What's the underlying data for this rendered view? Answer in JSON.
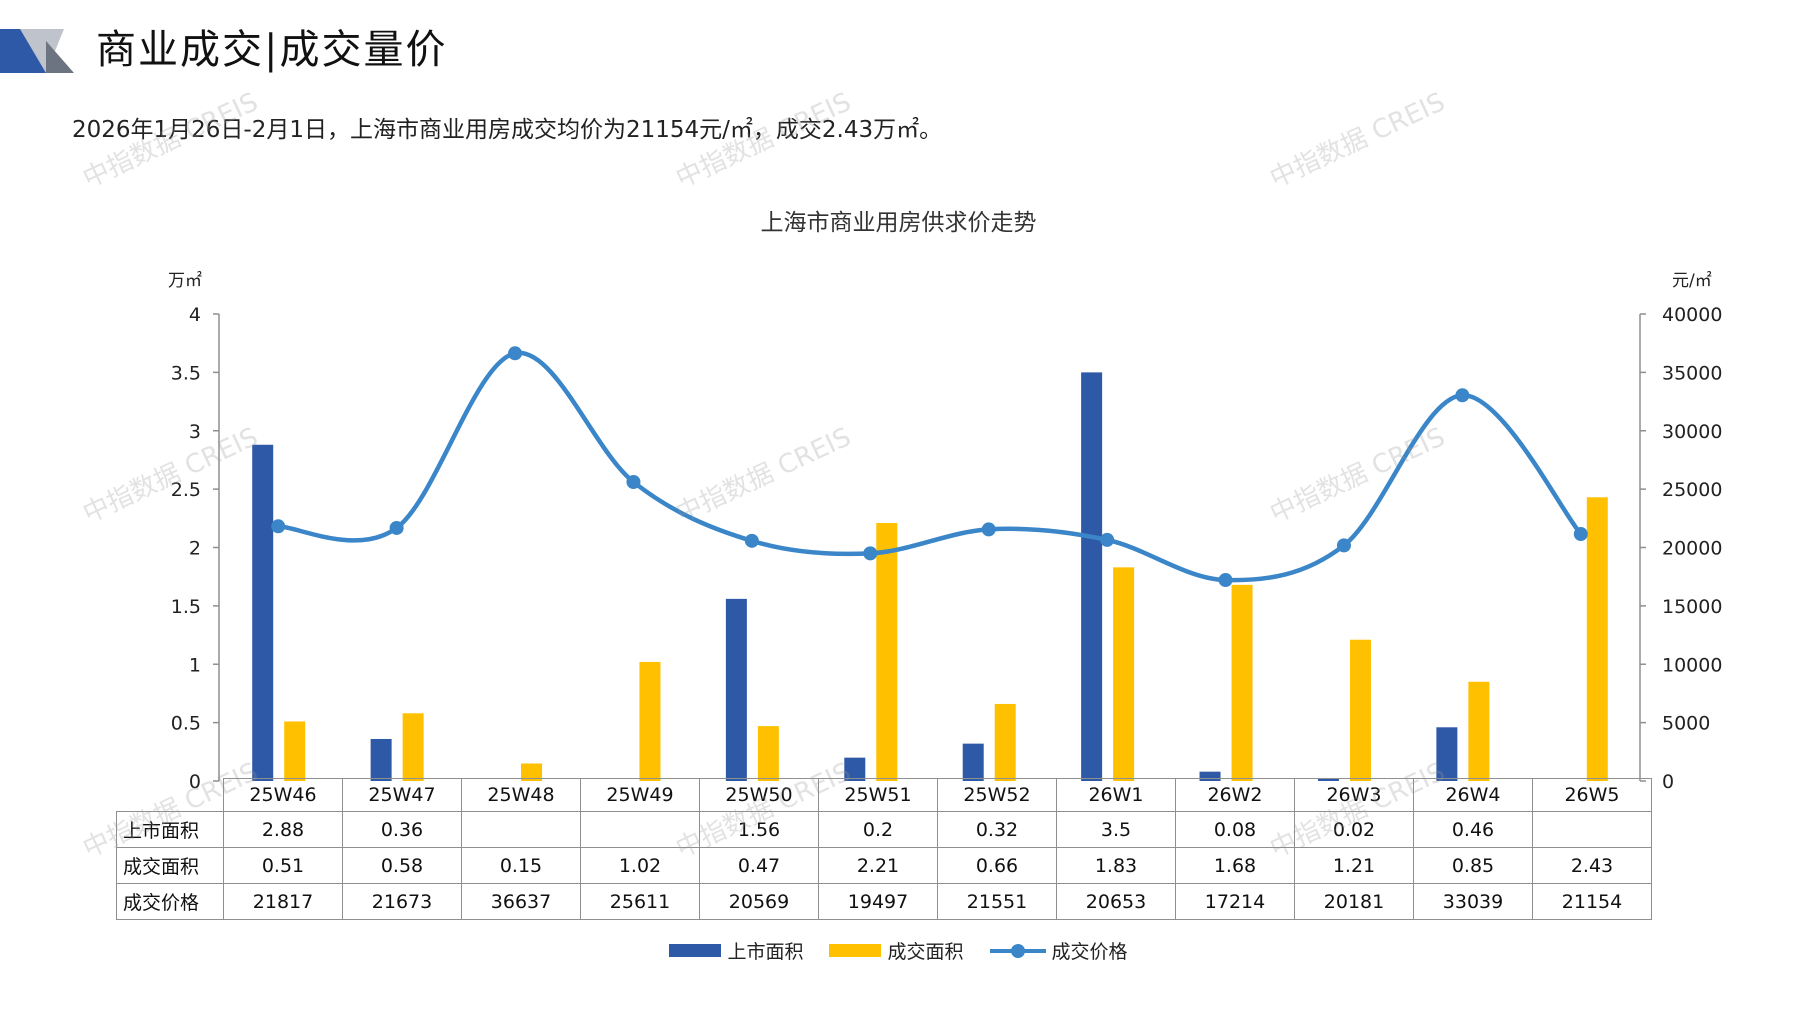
{
  "page": {
    "title": "商业成交|成交量价",
    "subtitle": "2026年1月26日-2月1日，上海市商业用房成交均价为21154元/㎡，成交2.43万㎡。",
    "watermark": "中指数据 CREIS"
  },
  "table": {
    "row_labels": [
      "上市面积",
      "成交面积",
      "成交价格"
    ],
    "supply": [
      "2.88",
      "0.36",
      "",
      "",
      "1.56",
      "0.2",
      "0.32",
      "3.5",
      "0.08",
      "0.02",
      "0.46",
      ""
    ],
    "deals": [
      "0.51",
      "0.58",
      "0.15",
      "1.02",
      "0.47",
      "2.21",
      "0.66",
      "1.83",
      "1.68",
      "1.21",
      "0.85",
      "2.43"
    ],
    "price": [
      "21817",
      "21673",
      "36637",
      "25611",
      "20569",
      "19497",
      "21551",
      "20653",
      "17214",
      "20181",
      "33039",
      "21154"
    ]
  },
  "chart_data": {
    "type": "bar",
    "title": "上海市商业用房供求价走势",
    "categories": [
      "25W46",
      "25W47",
      "25W48",
      "25W49",
      "25W50",
      "25W51",
      "25W52",
      "26W1",
      "26W2",
      "26W3",
      "26W4",
      "26W5"
    ],
    "y_left": {
      "unit": "万㎡",
      "ylim": [
        0,
        4
      ],
      "ticks": [
        "0",
        "0.5",
        "1",
        "1.5",
        "2",
        "2.5",
        "3",
        "3.5",
        "4"
      ]
    },
    "y_right": {
      "unit": "元/㎡",
      "ylim": [
        0,
        40000
      ],
      "ticks": [
        "0",
        "5000",
        "10000",
        "15000",
        "20000",
        "25000",
        "30000",
        "35000",
        "40000"
      ]
    },
    "series": [
      {
        "name": "上市面积",
        "type": "bar",
        "axis": "left",
        "color": "#2e59a6",
        "values": [
          2.88,
          0.36,
          null,
          null,
          1.56,
          0.2,
          0.32,
          3.5,
          0.08,
          0.02,
          0.46,
          null
        ]
      },
      {
        "name": "成交面积",
        "type": "bar",
        "axis": "left",
        "color": "#ffc000",
        "values": [
          0.51,
          0.58,
          0.15,
          1.02,
          0.47,
          2.21,
          0.66,
          1.83,
          1.68,
          1.21,
          0.85,
          2.43
        ]
      },
      {
        "name": "成交价格",
        "type": "line",
        "axis": "right",
        "color": "#3a86c8",
        "smooth": true,
        "values": [
          21817,
          21673,
          36637,
          25611,
          20569,
          19497,
          21551,
          20653,
          17214,
          20181,
          33039,
          21154
        ]
      }
    ],
    "legend": "bottom",
    "grid": false
  }
}
